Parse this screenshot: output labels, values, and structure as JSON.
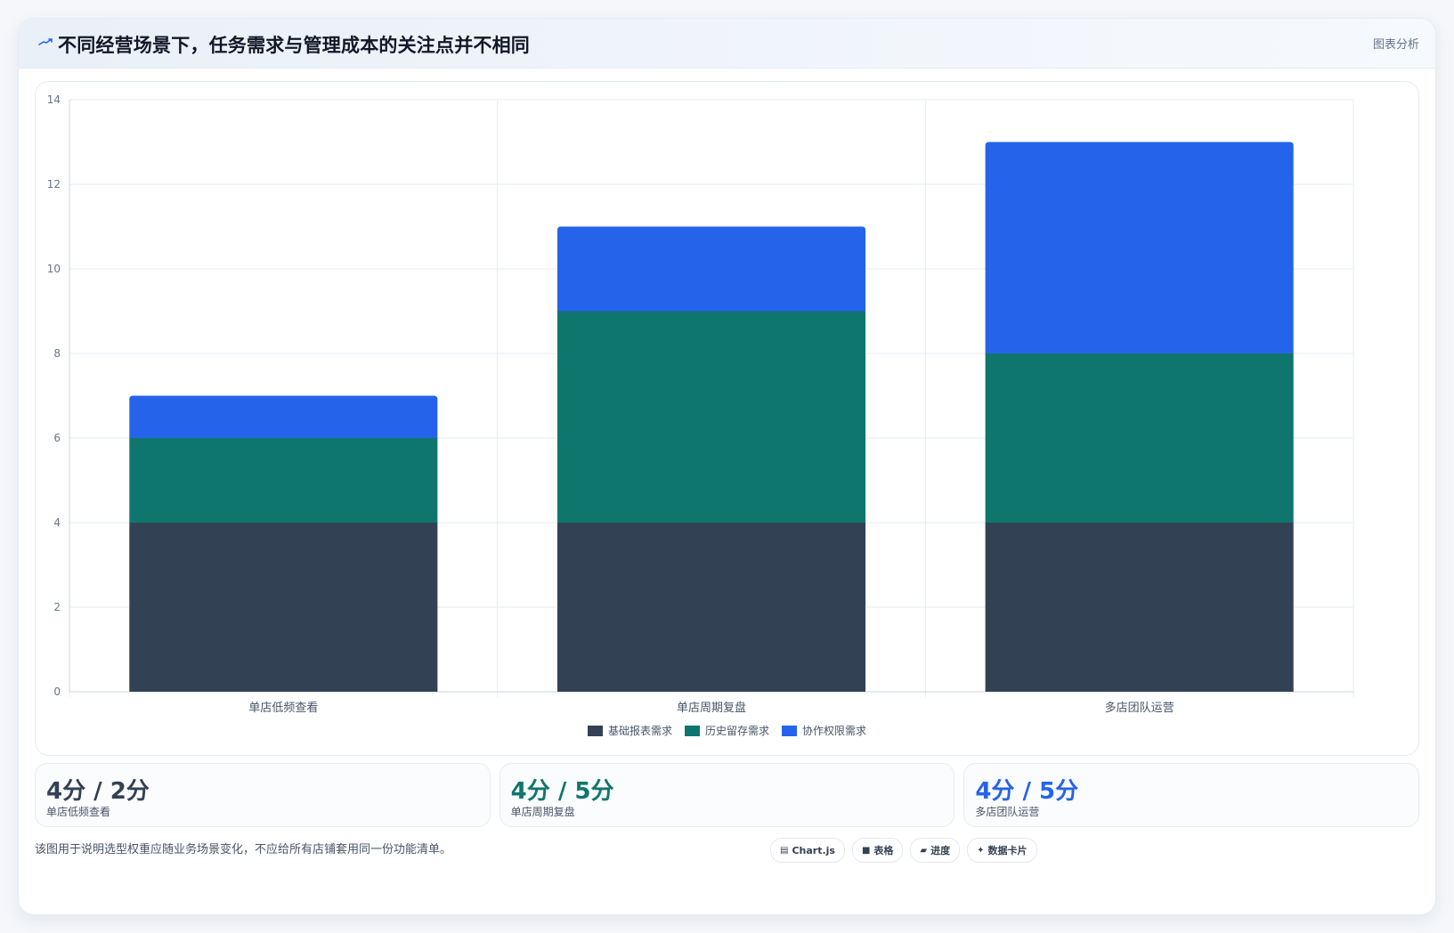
{
  "header": {
    "icon_name": "trend-arrow-icon",
    "title": "不同经营场景下，任务需求与管理成本的关注点并不相同",
    "right_link": "图表分析"
  },
  "chart_data": {
    "type": "bar",
    "stacked": true,
    "categories": [
      "单店低频查看",
      "单店周期复盘",
      "多店团队运营"
    ],
    "series": [
      {
        "name": "基础报表需求",
        "values": [
          4,
          4,
          4
        ],
        "color": "#334155"
      },
      {
        "name": "历史留存需求",
        "values": [
          2,
          5,
          4
        ],
        "color": "#0f766e"
      },
      {
        "name": "协作权限需求",
        "values": [
          1,
          2,
          5
        ],
        "color": "#2563eb"
      }
    ],
    "ylim": [
      0,
      14
    ],
    "yticks": [
      0,
      2,
      4,
      6,
      8,
      10,
      12,
      14
    ],
    "grid": true,
    "legend": "bottom-center",
    "title": "",
    "xlabel": "",
    "ylabel": ""
  },
  "stats": [
    {
      "value": "4分 / 2分",
      "label": "单店低频查看",
      "color": "#334155"
    },
    {
      "value": "4分 / 5分",
      "label": "单店周期复盘",
      "color": "#0f766e"
    },
    {
      "value": "4分 / 5分",
      "label": "多店团队运营",
      "color": "#2563eb"
    }
  ],
  "footer": {
    "note": "该图用于说明选型权重应随业务场景变化，不应给所有店铺套用同一份功能清单。"
  },
  "chips": [
    {
      "icon": "chart-icon",
      "label": "Chart.js"
    },
    {
      "icon": "table-icon",
      "label": "表格"
    },
    {
      "icon": "progress-icon",
      "label": "进度"
    },
    {
      "icon": "sparkle-icon",
      "label": "数据卡片"
    }
  ]
}
